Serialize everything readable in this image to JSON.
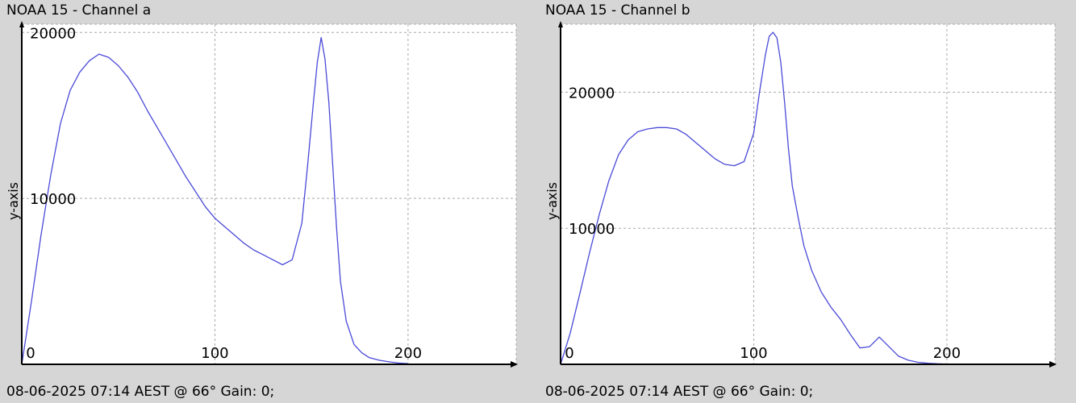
{
  "chart_data": [
    {
      "type": "line",
      "title": "NOAA 15 - Channel a",
      "ylabel": "y-axis",
      "xlabel": "",
      "xlim": [
        0,
        256
      ],
      "ylim": [
        0,
        20500
      ],
      "xticks": [
        "0",
        "100",
        "200"
      ],
      "yticks": [
        "10000",
        "20000"
      ],
      "xtick_values": [
        0,
        100,
        200
      ],
      "ytick_values": [
        10000,
        20000
      ],
      "grid": true,
      "footer": "08-06-2025 07:14 AEST @ 66° Gain: 0;",
      "series": [
        {
          "color": "#4a4ad8",
          "x": [
            0,
            5,
            10,
            15,
            20,
            25,
            30,
            35,
            40,
            45,
            50,
            55,
            60,
            65,
            70,
            75,
            80,
            85,
            90,
            95,
            100,
            105,
            110,
            115,
            120,
            125,
            130,
            135,
            140,
            145,
            148,
            151,
            153,
            155,
            157,
            159,
            161,
            163,
            165,
            168,
            172,
            176,
            180,
            185,
            190,
            195,
            200
          ],
          "y": [
            0,
            3800,
            7800,
            11400,
            14500,
            16500,
            17600,
            18300,
            18700,
            18500,
            18000,
            17300,
            16400,
            15300,
            14300,
            13300,
            12300,
            11300,
            10400,
            9500,
            8800,
            8300,
            7800,
            7300,
            6900,
            6600,
            6300,
            6000,
            6300,
            8500,
            12000,
            15800,
            18200,
            19700,
            18400,
            15800,
            12000,
            8200,
            5000,
            2600,
            1200,
            700,
            400,
            250,
            150,
            80,
            40
          ]
        }
      ]
    },
    {
      "type": "line",
      "title": "NOAA 15 - Channel b",
      "ylabel": "y-axis",
      "xlabel": "",
      "xlim": [
        0,
        256
      ],
      "ylim": [
        0,
        25000
      ],
      "xticks": [
        "0",
        "100",
        "200"
      ],
      "yticks": [
        "10000",
        "20000"
      ],
      "xtick_values": [
        0,
        100,
        200
      ],
      "ytick_values": [
        10000,
        20000
      ],
      "grid": true,
      "footer": "08-06-2025 07:14 AEST @ 66° Gain: 0;",
      "series": [
        {
          "color": "#4a4ad8",
          "x": [
            0,
            5,
            10,
            15,
            20,
            25,
            30,
            35,
            40,
            45,
            50,
            55,
            60,
            65,
            70,
            75,
            80,
            85,
            90,
            95,
            100,
            103,
            106,
            108,
            110,
            112,
            114,
            116,
            118,
            120,
            123,
            126,
            130,
            135,
            140,
            145,
            150,
            155,
            160,
            165,
            170,
            175,
            180,
            185,
            190,
            195,
            200
          ],
          "y": [
            0,
            2300,
            5200,
            8200,
            11000,
            13500,
            15400,
            16500,
            17100,
            17300,
            17400,
            17400,
            17300,
            16900,
            16300,
            15700,
            15100,
            14700,
            14600,
            14900,
            17000,
            20000,
            22700,
            24100,
            24400,
            24000,
            22200,
            19200,
            15800,
            13100,
            10800,
            8700,
            6900,
            5300,
            4200,
            3300,
            2200,
            1200,
            1300,
            2000,
            1300,
            600,
            300,
            150,
            80,
            40,
            20
          ]
        }
      ]
    }
  ]
}
